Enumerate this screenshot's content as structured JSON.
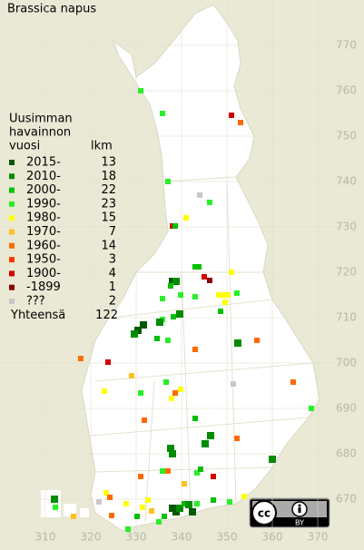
{
  "title": "Brassica napus",
  "legend": {
    "heading": [
      "Uusimman",
      "havainnon",
      "vuosi"
    ],
    "count_heading": "lkm",
    "entries": [
      {
        "label": "2015-",
        "count": 13,
        "color": "#005a00"
      },
      {
        "label": "2010-",
        "count": 18,
        "color": "#008c00"
      },
      {
        "label": "2000-",
        "count": 22,
        "color": "#00c000"
      },
      {
        "label": "1990-",
        "count": 23,
        "color": "#28f028"
      },
      {
        "label": "1980-",
        "count": 15,
        "color": "#ffff00"
      },
      {
        "label": "1970-",
        "count": 7,
        "color": "#ffc020"
      },
      {
        "label": "1960-",
        "count": 14,
        "color": "#ff6a00"
      },
      {
        "label": "1950-",
        "count": 3,
        "color": "#ff3a00"
      },
      {
        "label": "1900-",
        "count": 4,
        "color": "#d00000"
      },
      {
        "label": "-1899",
        "count": 1,
        "color": "#8a0000"
      },
      {
        "label": "???",
        "count": 2,
        "color": "#c8c8c8"
      }
    ],
    "total": {
      "label": "Yhteensä",
      "count": 122
    }
  },
  "x_axis": [
    310,
    320,
    330,
    340,
    350,
    360,
    370
  ],
  "y_axis": [
    670,
    680,
    690,
    700,
    710,
    720,
    730,
    740,
    750,
    760,
    770
  ],
  "license": "BY"
}
